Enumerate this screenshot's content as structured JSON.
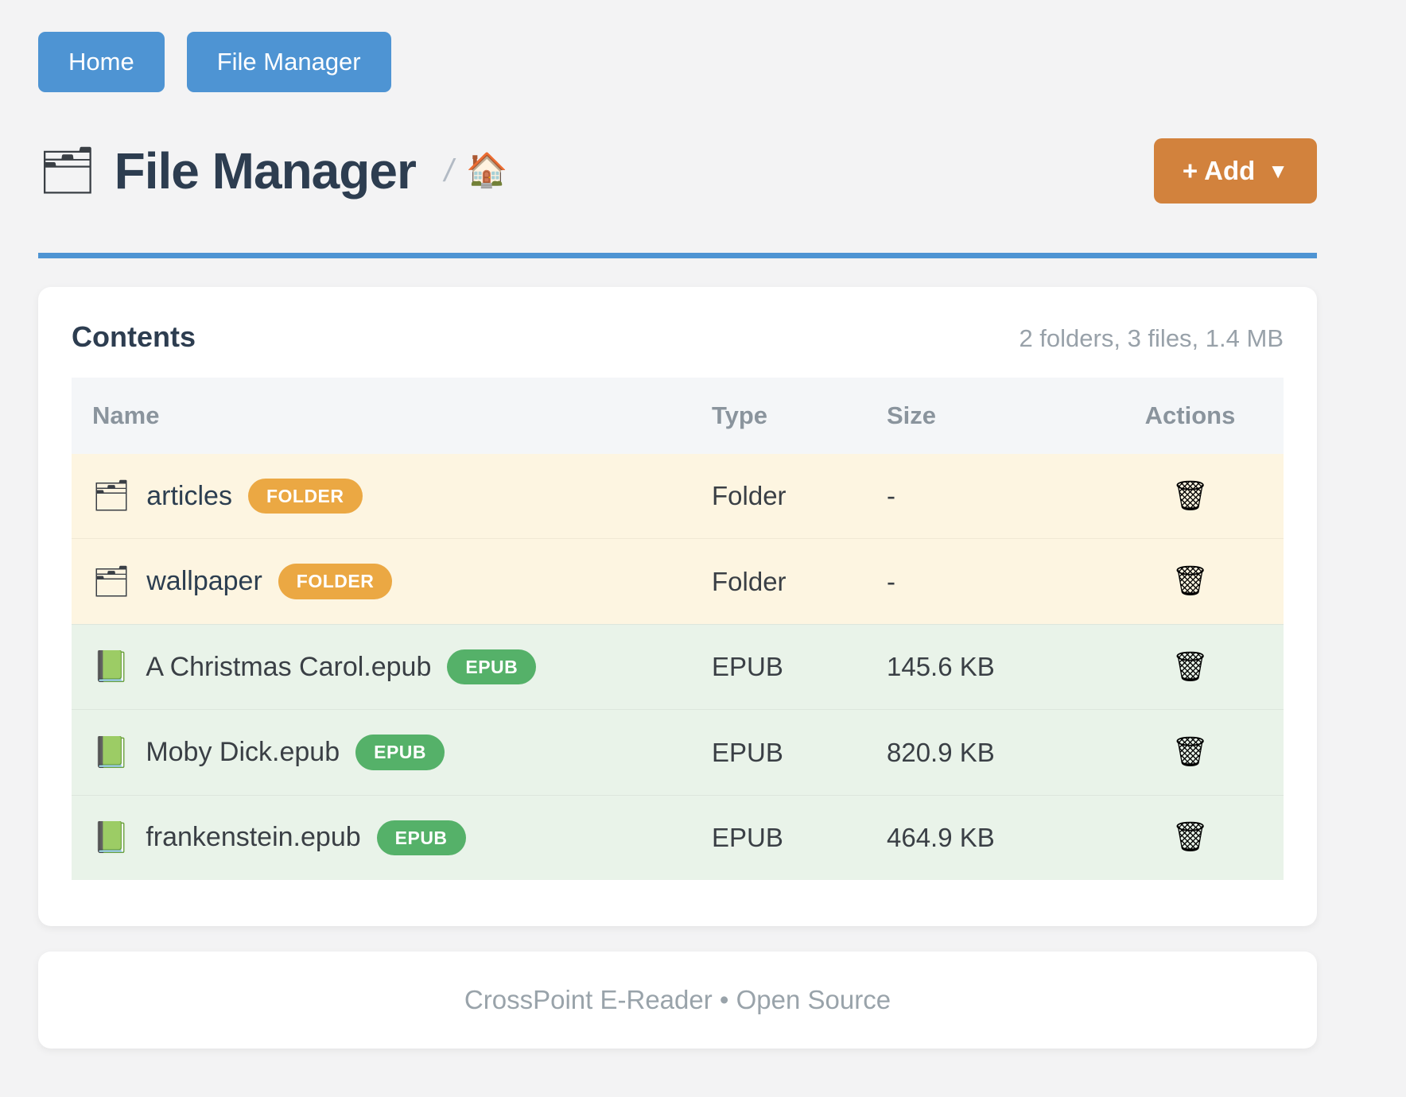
{
  "nav": {
    "home_label": "Home",
    "file_manager_label": "File Manager"
  },
  "header": {
    "title": "File Manager",
    "title_icon": "folder-icon",
    "breadcrumb_separator": "/",
    "breadcrumb_home_icon": "house-icon",
    "add_button": {
      "label": "+ Add",
      "caret": "▼"
    }
  },
  "panel": {
    "title": "Contents",
    "summary": "2 folders, 3 files, 1.4 MB",
    "columns": [
      "Name",
      "Type",
      "Size",
      "Actions"
    ],
    "rows": [
      {
        "name": "articles",
        "kind": "folder",
        "icon": "folder-icon",
        "badge": "FOLDER",
        "type": "Folder",
        "size": "-"
      },
      {
        "name": "wallpaper",
        "kind": "folder",
        "icon": "folder-icon",
        "badge": "FOLDER",
        "type": "Folder",
        "size": "-"
      },
      {
        "name": "A Christmas Carol.epub",
        "kind": "epub",
        "icon": "green-book-icon",
        "badge": "EPUB",
        "type": "EPUB",
        "size": "145.6 KB"
      },
      {
        "name": "Moby Dick.epub",
        "kind": "epub",
        "icon": "green-book-icon",
        "badge": "EPUB",
        "type": "EPUB",
        "size": "820.9 KB"
      },
      {
        "name": "frankenstein.epub",
        "kind": "epub",
        "icon": "green-book-icon",
        "badge": "EPUB",
        "type": "EPUB",
        "size": "464.9 KB"
      }
    ],
    "delete_icon": "trash-icon"
  },
  "footer": {
    "text": "CrossPoint E-Reader • Open Source"
  },
  "colors": {
    "primary_blue": "#4e94d3",
    "accent_orange": "#d2823d",
    "folder_badge_orange": "#eba843",
    "epub_badge_green": "#55b169",
    "folder_row_bg": "#fdf5e1",
    "epub_row_bg": "#e9f3e9",
    "heading_navy": "#2d3d50",
    "muted_gray": "#98a1a9"
  }
}
